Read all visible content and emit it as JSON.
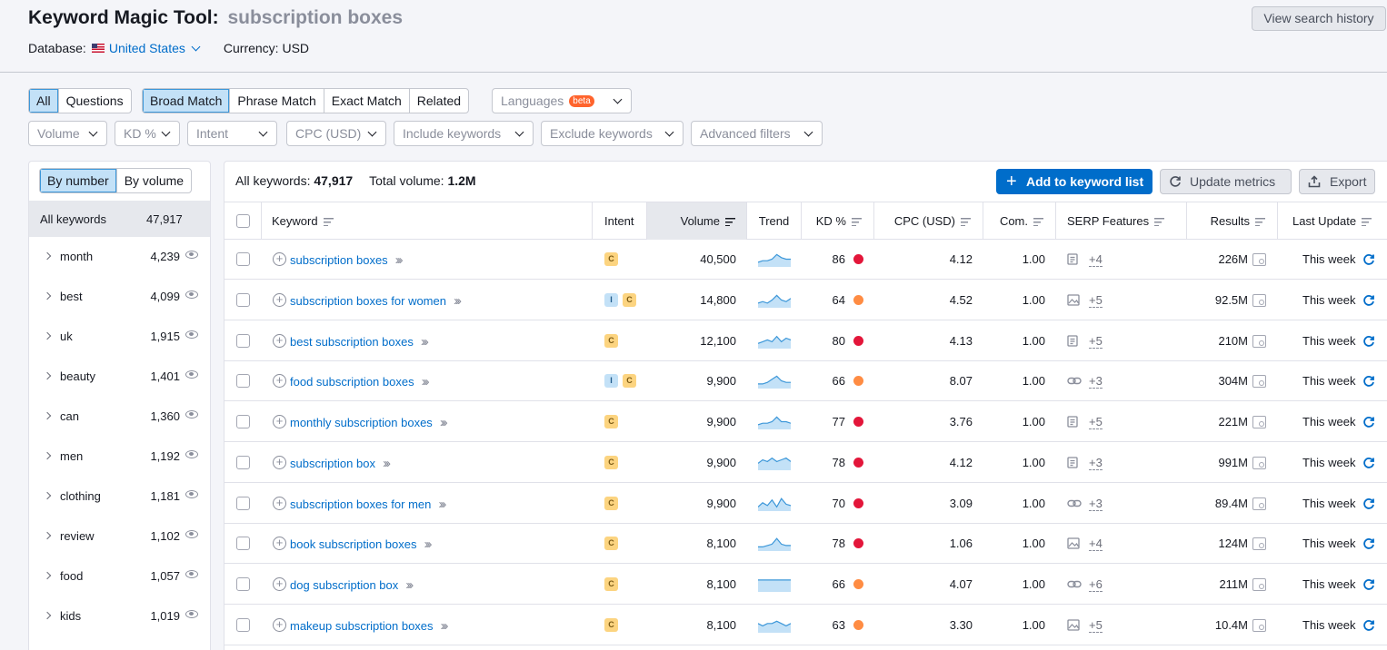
{
  "header": {
    "title": "Keyword Magic Tool:",
    "query": "subscription boxes",
    "database_label": "Database:",
    "database_value": "United States",
    "currency": "Currency: USD",
    "history_button": "View search history"
  },
  "filters": {
    "type_tabs": [
      "All",
      "Questions"
    ],
    "match_tabs": [
      "Broad Match",
      "Phrase Match",
      "Exact Match",
      "Related"
    ],
    "languages": "Languages",
    "beta": "beta",
    "dropdowns": [
      "Volume",
      "KD %",
      "Intent",
      "CPC (USD)",
      "Include keywords",
      "Exclude keywords",
      "Advanced filters"
    ]
  },
  "sidebar": {
    "tabs": [
      "By number",
      "By volume"
    ],
    "all_label": "All keywords",
    "all_count": "47,917",
    "groups": [
      {
        "label": "month",
        "count": "4,239"
      },
      {
        "label": "best",
        "count": "4,099"
      },
      {
        "label": "uk",
        "count": "1,915"
      },
      {
        "label": "beauty",
        "count": "1,401"
      },
      {
        "label": "can",
        "count": "1,360"
      },
      {
        "label": "men",
        "count": "1,192"
      },
      {
        "label": "clothing",
        "count": "1,181"
      },
      {
        "label": "review",
        "count": "1,102"
      },
      {
        "label": "food",
        "count": "1,057"
      },
      {
        "label": "kids",
        "count": "1,019"
      }
    ]
  },
  "summary": {
    "all_label": "All keywords:",
    "all_value": "47,917",
    "volume_label": "Total volume:",
    "volume_value": "1.2M"
  },
  "actions": {
    "add": "Add to keyword list",
    "update": "Update metrics",
    "export": "Export"
  },
  "table": {
    "columns": [
      "Keyword",
      "Intent",
      "Volume",
      "Trend",
      "KD %",
      "CPC (USD)",
      "Com.",
      "SERP Features",
      "Results",
      "Last Update"
    ],
    "rows": [
      {
        "keyword": "subscription boxes",
        "intent": [
          "C"
        ],
        "volume": "40,500",
        "kd": "86",
        "kd_color": "#e3163a",
        "cpc": "4.12",
        "com": "1.00",
        "serp_icon": "snippet",
        "serp_more": "+4",
        "results": "226M",
        "updated": "This week",
        "trend": [
          3,
          4,
          4,
          5,
          8,
          6,
          5,
          5
        ]
      },
      {
        "keyword": "subscription boxes for women",
        "intent": [
          "I",
          "C"
        ],
        "volume": "14,800",
        "kd": "64",
        "kd_color": "#ff8c43",
        "cpc": "4.52",
        "com": "1.00",
        "serp_icon": "image",
        "serp_more": "+5",
        "results": "92.5M",
        "updated": "This week",
        "trend": [
          3,
          4,
          3,
          5,
          8,
          5,
          4,
          6
        ]
      },
      {
        "keyword": "best subscription boxes",
        "intent": [
          "C"
        ],
        "volume": "12,100",
        "kd": "80",
        "kd_color": "#e3163a",
        "cpc": "4.13",
        "com": "1.00",
        "serp_icon": "snippet",
        "serp_more": "+5",
        "results": "210M",
        "updated": "This week",
        "trend": [
          3,
          4,
          5,
          4,
          7,
          4,
          6,
          5
        ]
      },
      {
        "keyword": "food subscription boxes",
        "intent": [
          "I",
          "C"
        ],
        "volume": "9,900",
        "kd": "66",
        "kd_color": "#ff8c43",
        "cpc": "8.07",
        "com": "1.00",
        "serp_icon": "link",
        "serp_more": "+3",
        "results": "304M",
        "updated": "This week",
        "trend": [
          3,
          3,
          4,
          6,
          8,
          5,
          4,
          4
        ]
      },
      {
        "keyword": "monthly subscription boxes",
        "intent": [
          "C"
        ],
        "volume": "9,900",
        "kd": "77",
        "kd_color": "#e3163a",
        "cpc": "3.76",
        "com": "1.00",
        "serp_icon": "snippet",
        "serp_more": "+5",
        "results": "221M",
        "updated": "This week",
        "trend": [
          3,
          4,
          4,
          5,
          8,
          5,
          5,
          4
        ]
      },
      {
        "keyword": "subscription box",
        "intent": [
          "C"
        ],
        "volume": "9,900",
        "kd": "78",
        "kd_color": "#e3163a",
        "cpc": "4.12",
        "com": "1.00",
        "serp_icon": "snippet",
        "serp_more": "+3",
        "results": "991M",
        "updated": "This week",
        "trend": [
          4,
          6,
          5,
          7,
          5,
          6,
          7,
          5
        ]
      },
      {
        "keyword": "subscription boxes for men",
        "intent": [
          "C"
        ],
        "volume": "9,900",
        "kd": "70",
        "kd_color": "#e3163a",
        "cpc": "3.09",
        "com": "1.00",
        "serp_icon": "link",
        "serp_more": "+3",
        "results": "89.4M",
        "updated": "This week",
        "trend": [
          3,
          6,
          4,
          8,
          3,
          9,
          5,
          4
        ]
      },
      {
        "keyword": "book subscription boxes",
        "intent": [
          "C"
        ],
        "volume": "8,100",
        "kd": "78",
        "kd_color": "#e3163a",
        "cpc": "1.06",
        "com": "1.00",
        "serp_icon": "image",
        "serp_more": "+4",
        "results": "124M",
        "updated": "This week",
        "trend": [
          3,
          3,
          4,
          5,
          9,
          5,
          4,
          4
        ]
      },
      {
        "keyword": "dog subscription box",
        "intent": [
          "C"
        ],
        "volume": "8,100",
        "kd": "66",
        "kd_color": "#ff8c43",
        "cpc": "4.07",
        "com": "1.00",
        "serp_icon": "link",
        "serp_more": "+6",
        "results": "211M",
        "updated": "This week",
        "trend": [
          6,
          6,
          6,
          6,
          6,
          6,
          6,
          6
        ]
      },
      {
        "keyword": "makeup subscription boxes",
        "intent": [
          "C"
        ],
        "volume": "8,100",
        "kd": "63",
        "kd_color": "#ff8c43",
        "cpc": "3.30",
        "com": "1.00",
        "serp_icon": "image",
        "serp_more": "+5",
        "results": "10.4M",
        "updated": "This week",
        "trend": [
          4,
          3,
          4,
          4,
          5,
          4,
          3,
          4
        ]
      }
    ]
  },
  "colors": {
    "accent": "#006dca",
    "active_tab": "#c3e1f7",
    "kd_hard": "#e3163a",
    "kd_medium": "#ff8c43"
  }
}
